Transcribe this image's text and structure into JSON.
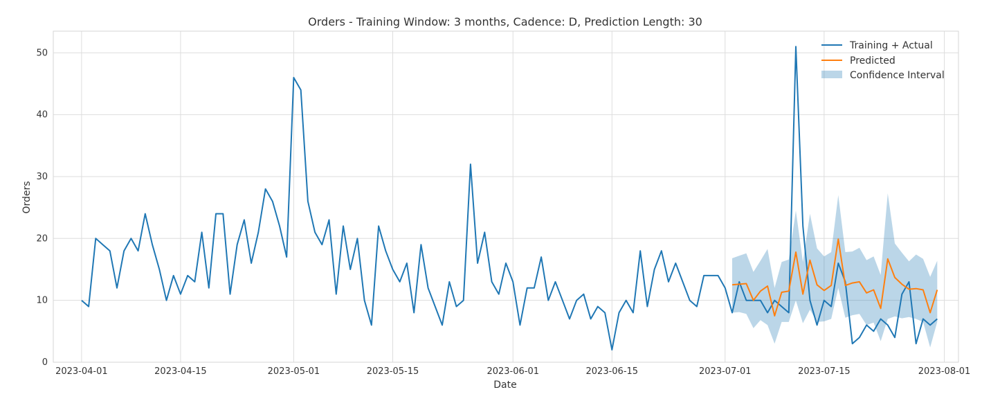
{
  "chart_data": {
    "type": "line",
    "title": "Orders - Training Window: 3 months, Cadence: D, Prediction Length: 30",
    "xlabel": "Date",
    "ylabel": "Orders",
    "x_range": [
      "2023-03-28",
      "2023-08-03"
    ],
    "ylim": [
      0,
      53.5
    ],
    "grid": true,
    "legend_position": "top-right",
    "x_ticks": [
      "2023-04-01",
      "2023-04-15",
      "2023-05-01",
      "2023-05-15",
      "2023-06-01",
      "2023-06-15",
      "2023-07-01",
      "2023-07-15",
      "2023-08-01"
    ],
    "y_ticks": [
      0,
      10,
      20,
      30,
      40,
      50
    ],
    "colors": {
      "actual": "#1f77b4",
      "predicted": "#ff7f0e",
      "band": "#1f77b4"
    },
    "series": [
      {
        "name": "Training + Actual",
        "start_date": "2023-04-01",
        "values": [
          10,
          9,
          20,
          19,
          18,
          12,
          18,
          20,
          18,
          24,
          19,
          15,
          10,
          14,
          11,
          14,
          13,
          21,
          12,
          24,
          24,
          11,
          19,
          23,
          16,
          21,
          28,
          26,
          22,
          17,
          46,
          44,
          26,
          21,
          19,
          23,
          11,
          22,
          15,
          20,
          10,
          6,
          22,
          18,
          15,
          13,
          16,
          8,
          19,
          12,
          9,
          6,
          13,
          9,
          10,
          32,
          16,
          21,
          13,
          11,
          16,
          13,
          6,
          12,
          12,
          17,
          10,
          13,
          10,
          7,
          10,
          11,
          7,
          9,
          8,
          2,
          8,
          10,
          8,
          18,
          9,
          15,
          18,
          13,
          16,
          13,
          10,
          9,
          14,
          14,
          14,
          12,
          8,
          13,
          10,
          10,
          10,
          8,
          10,
          9,
          8,
          51,
          22,
          10,
          6,
          10,
          9,
          16,
          13,
          3,
          4,
          6,
          5,
          7,
          6,
          4,
          11,
          13,
          3,
          7,
          6,
          7
        ]
      },
      {
        "name": "Predicted",
        "start_date": "2023-07-02",
        "values": [
          12.5,
          12.6,
          12.7,
          10.0,
          11.5,
          12.3,
          7.5,
          11.3,
          11.5,
          17.8,
          11.0,
          16.5,
          12.5,
          11.6,
          12.4,
          19.9,
          12.4,
          12.8,
          13.0,
          11.2,
          11.7,
          8.7,
          16.7,
          13.7,
          12.6,
          11.8,
          11.9,
          11.7,
          8.0,
          11.7
        ]
      },
      {
        "name": "Confidence Interval",
        "start_date": "2023-07-02",
        "lower": [
          8.0,
          8.1,
          7.8,
          5.5,
          6.8,
          6.0,
          3.0,
          6.5,
          6.5,
          10.0,
          6.3,
          8.5,
          6.5,
          6.6,
          7.0,
          12.0,
          7.2,
          7.6,
          7.8,
          6.0,
          6.4,
          3.4,
          7.0,
          7.4,
          7.1,
          7.3,
          7.0,
          6.5,
          2.4,
          6.5
        ],
        "upper": [
          16.8,
          17.2,
          17.6,
          14.6,
          16.4,
          18.3,
          12.0,
          16.2,
          16.6,
          24.5,
          16.2,
          24.0,
          18.4,
          17.1,
          17.8,
          27.0,
          17.8,
          17.9,
          18.5,
          16.5,
          17.1,
          14.1,
          27.3,
          19.2,
          17.7,
          16.3,
          17.4,
          16.7,
          13.8,
          16.4
        ]
      }
    ]
  }
}
